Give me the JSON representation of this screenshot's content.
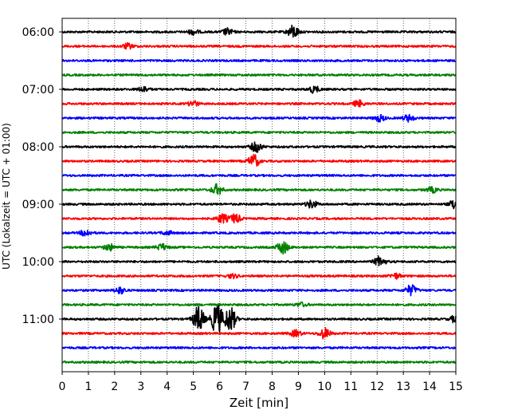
{
  "chart_data": {
    "type": "line",
    "title": "",
    "xlabel": "Zeit  [min]",
    "ylabel": "UTC (Lokalzeit = UTC + 01:00)",
    "xlim": [
      0,
      15
    ],
    "x_ticks": [
      "0",
      "1",
      "2",
      "3",
      "4",
      "5",
      "6",
      "7",
      "8",
      "9",
      "10",
      "11",
      "12",
      "13",
      "14",
      "15"
    ],
    "y_ticks": [
      "06:00",
      "07:00",
      "08:00",
      "09:00",
      "10:00",
      "11:00"
    ],
    "grid": "vertical dotted lines at each minute",
    "trace_interval_minutes": 15,
    "series": [
      {
        "start": "06:00",
        "color": "#000000",
        "events": [
          {
            "t": 5.0,
            "amp": 0.4
          },
          {
            "t": 6.3,
            "amp": 0.5
          },
          {
            "t": 8.8,
            "amp": 1.0
          }
        ]
      },
      {
        "start": "06:15",
        "color": "#ff0000",
        "events": [
          {
            "t": 2.5,
            "amp": 0.4
          }
        ]
      },
      {
        "start": "06:30",
        "color": "#0000ff",
        "events": []
      },
      {
        "start": "06:45",
        "color": "#008000",
        "events": []
      },
      {
        "start": "07:00",
        "color": "#000000",
        "events": [
          {
            "t": 3.1,
            "amp": 0.4
          },
          {
            "t": 9.6,
            "amp": 0.5
          }
        ]
      },
      {
        "start": "07:15",
        "color": "#ff0000",
        "events": [
          {
            "t": 5.0,
            "amp": 0.4
          },
          {
            "t": 11.3,
            "amp": 0.5
          }
        ]
      },
      {
        "start": "07:30",
        "color": "#0000ff",
        "events": [
          {
            "t": 12.1,
            "amp": 0.5
          },
          {
            "t": 13.2,
            "amp": 0.5
          }
        ]
      },
      {
        "start": "07:45",
        "color": "#008000",
        "events": []
      },
      {
        "start": "08:00",
        "color": "#000000",
        "events": [
          {
            "t": 7.4,
            "amp": 0.8
          }
        ]
      },
      {
        "start": "08:15",
        "color": "#ff0000",
        "events": [
          {
            "t": 7.3,
            "amp": 1.0
          }
        ]
      },
      {
        "start": "08:30",
        "color": "#0000ff",
        "events": []
      },
      {
        "start": "08:45",
        "color": "#008000",
        "events": [
          {
            "t": 5.9,
            "amp": 0.8
          },
          {
            "t": 14.1,
            "amp": 0.4
          }
        ]
      },
      {
        "start": "09:00",
        "color": "#000000",
        "events": [
          {
            "t": 9.5,
            "amp": 0.6
          },
          {
            "t": 15.0,
            "amp": 1.0
          }
        ]
      },
      {
        "start": "09:15",
        "color": "#ff0000",
        "events": [
          {
            "t": 6.1,
            "amp": 0.7
          },
          {
            "t": 6.6,
            "amp": 0.7
          }
        ]
      },
      {
        "start": "09:30",
        "color": "#0000ff",
        "events": [
          {
            "t": 0.9,
            "amp": 0.5
          },
          {
            "t": 4.0,
            "amp": 0.3
          }
        ]
      },
      {
        "start": "09:45",
        "color": "#008000",
        "events": [
          {
            "t": 1.8,
            "amp": 0.5
          },
          {
            "t": 3.8,
            "amp": 0.5
          },
          {
            "t": 8.4,
            "amp": 1.0
          }
        ]
      },
      {
        "start": "10:00",
        "color": "#000000",
        "events": [
          {
            "t": 12.1,
            "amp": 0.8
          }
        ]
      },
      {
        "start": "10:15",
        "color": "#ff0000",
        "events": [
          {
            "t": 6.5,
            "amp": 0.3
          },
          {
            "t": 12.7,
            "amp": 0.4
          }
        ]
      },
      {
        "start": "10:30",
        "color": "#0000ff",
        "events": [
          {
            "t": 2.2,
            "amp": 0.5
          },
          {
            "t": 13.3,
            "amp": 0.8
          }
        ]
      },
      {
        "start": "10:45",
        "color": "#008000",
        "events": [
          {
            "t": 9.1,
            "amp": 0.3
          }
        ]
      },
      {
        "start": "11:00",
        "color": "#000000",
        "events": [
          {
            "t": 5.2,
            "amp": 2.0
          },
          {
            "t": 5.9,
            "amp": 2.5
          },
          {
            "t": 6.4,
            "amp": 2.0
          },
          {
            "t": 15.0,
            "amp": 0.6
          }
        ]
      },
      {
        "start": "11:15",
        "color": "#ff0000",
        "events": [
          {
            "t": 8.9,
            "amp": 0.5
          },
          {
            "t": 10.0,
            "amp": 0.8
          }
        ]
      },
      {
        "start": "11:30",
        "color": "#0000ff",
        "events": []
      },
      {
        "start": "11:45",
        "color": "#008000",
        "events": []
      }
    ]
  }
}
